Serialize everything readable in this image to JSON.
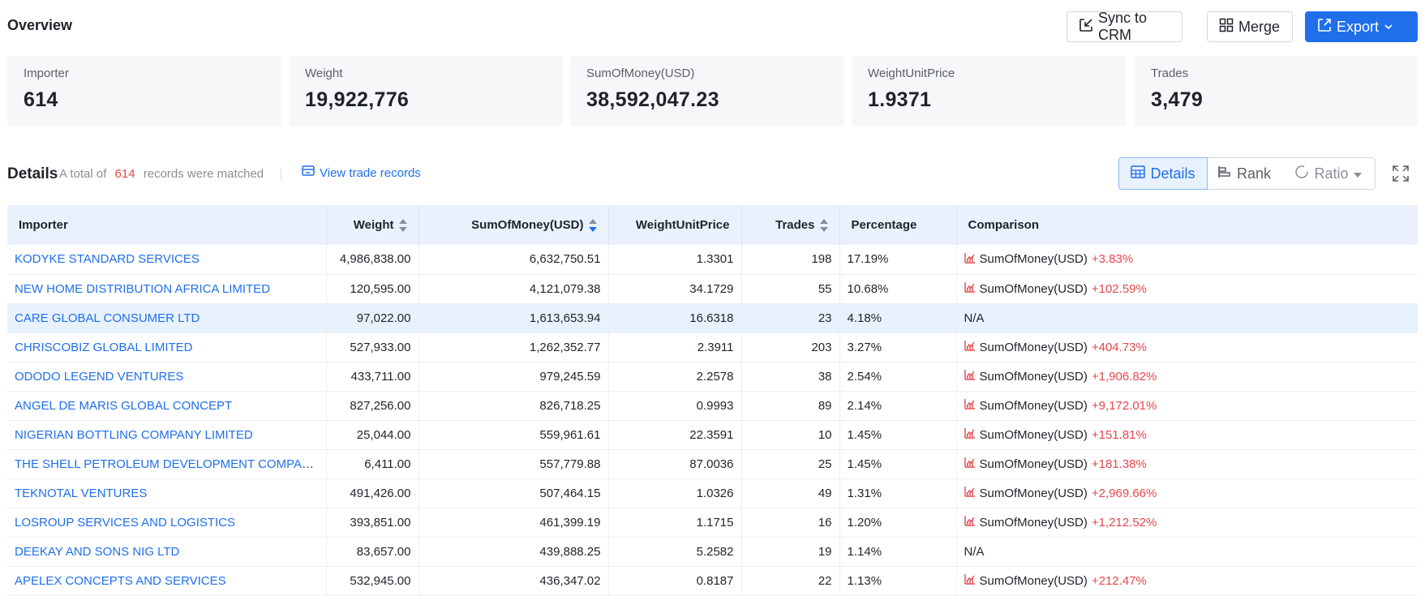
{
  "overview": {
    "title": "Overview"
  },
  "actions": {
    "sync": "Sync to CRM",
    "merge": "Merge",
    "export": "Export"
  },
  "stats": [
    {
      "label": "Importer",
      "value": "614"
    },
    {
      "label": "Weight",
      "value": "19,922,776"
    },
    {
      "label": "SumOfMoney(USD)",
      "value": "38,592,047.23"
    },
    {
      "label": "WeightUnitPrice",
      "value": "1.9371"
    },
    {
      "label": "Trades",
      "value": "3,479"
    }
  ],
  "details": {
    "title": "Details",
    "matched_prefix": "A total of",
    "matched_count": "614",
    "matched_suffix": "records were matched",
    "view_link": "View trade records"
  },
  "views": {
    "details": "Details",
    "rank": "Rank",
    "ratio": "Ratio"
  },
  "table": {
    "headers": [
      "Importer",
      "Weight",
      "SumOfMoney(USD)",
      "WeightUnitPrice",
      "Trades",
      "Percentage",
      "Comparison"
    ],
    "rows": [
      {
        "importer": "KODYKE STANDARD SERVICES",
        "weight": "4,986,838.00",
        "money": "6,632,750.51",
        "price": "1.3301",
        "trades": "198",
        "pct": "17.19%",
        "cmp_label": "SumOfMoney(USD)",
        "cmp_value": "+3.83%"
      },
      {
        "importer": "NEW HOME DISTRIBUTION AFRICA LIMITED",
        "weight": "120,595.00",
        "money": "4,121,079.38",
        "price": "34.1729",
        "trades": "55",
        "pct": "10.68%",
        "cmp_label": "SumOfMoney(USD)",
        "cmp_value": "+102.59%"
      },
      {
        "importer": "CARE GLOBAL CONSUMER LTD",
        "weight": "97,022.00",
        "money": "1,613,653.94",
        "price": "16.6318",
        "trades": "23",
        "pct": "4.18%",
        "cmp_label": "N/A",
        "cmp_value": ""
      },
      {
        "importer": "CHRISCOBIZ GLOBAL LIMITED",
        "weight": "527,933.00",
        "money": "1,262,352.77",
        "price": "2.3911",
        "trades": "203",
        "pct": "3.27%",
        "cmp_label": "SumOfMoney(USD)",
        "cmp_value": "+404.73%"
      },
      {
        "importer": "ODODO LEGEND VENTURES",
        "weight": "433,711.00",
        "money": "979,245.59",
        "price": "2.2578",
        "trades": "38",
        "pct": "2.54%",
        "cmp_label": "SumOfMoney(USD)",
        "cmp_value": "+1,906.82%"
      },
      {
        "importer": "ANGEL DE MARIS GLOBAL CONCEPT",
        "weight": "827,256.00",
        "money": "826,718.25",
        "price": "0.9993",
        "trades": "89",
        "pct": "2.14%",
        "cmp_label": "SumOfMoney(USD)",
        "cmp_value": "+9,172.01%"
      },
      {
        "importer": "NIGERIAN BOTTLING COMPANY LIMITED",
        "weight": "25,044.00",
        "money": "559,961.61",
        "price": "22.3591",
        "trades": "10",
        "pct": "1.45%",
        "cmp_label": "SumOfMoney(USD)",
        "cmp_value": "+151.81%"
      },
      {
        "importer": "THE SHELL PETROLEUM DEVELOPMENT COMPANY OF NIGERIA LIMITED",
        "weight": "6,411.00",
        "money": "557,779.88",
        "price": "87.0036",
        "trades": "25",
        "pct": "1.45%",
        "cmp_label": "SumOfMoney(USD)",
        "cmp_value": "+181.38%"
      },
      {
        "importer": "TEKNOTAL VENTURES",
        "weight": "491,426.00",
        "money": "507,464.15",
        "price": "1.0326",
        "trades": "49",
        "pct": "1.31%",
        "cmp_label": "SumOfMoney(USD)",
        "cmp_value": "+2,969.66%"
      },
      {
        "importer": "LOSROUP SERVICES AND LOGISTICS",
        "weight": "393,851.00",
        "money": "461,399.19",
        "price": "1.1715",
        "trades": "16",
        "pct": "1.20%",
        "cmp_label": "SumOfMoney(USD)",
        "cmp_value": "+1,212.52%"
      },
      {
        "importer": "DEEKAY AND SONS NIG LTD",
        "weight": "83,657.00",
        "money": "439,888.25",
        "price": "5.2582",
        "trades": "19",
        "pct": "1.14%",
        "cmp_label": "N/A",
        "cmp_value": ""
      },
      {
        "importer": "APELEX CONCEPTS AND SERVICES",
        "weight": "532,945.00",
        "money": "436,347.02",
        "price": "0.8187",
        "trades": "22",
        "pct": "1.13%",
        "cmp_label": "SumOfMoney(USD)",
        "cmp_value": "+212.47%"
      }
    ]
  },
  "colors": {
    "accent": "#1f6feb",
    "negative_highlight": "#e5484d",
    "header_bg": "#eaf1fc",
    "row_highlight": "#e8f2fd"
  },
  "icons": {
    "sync": "sync-crm-icon",
    "merge": "merge-icon",
    "export": "export-icon",
    "chevron": "chevron-down-icon",
    "view": "view-records-icon",
    "table": "table-icon",
    "rank": "rank-icon",
    "ratio": "ratio-icon",
    "fullscreen": "fullscreen-icon",
    "trend": "trend-chart-icon"
  }
}
